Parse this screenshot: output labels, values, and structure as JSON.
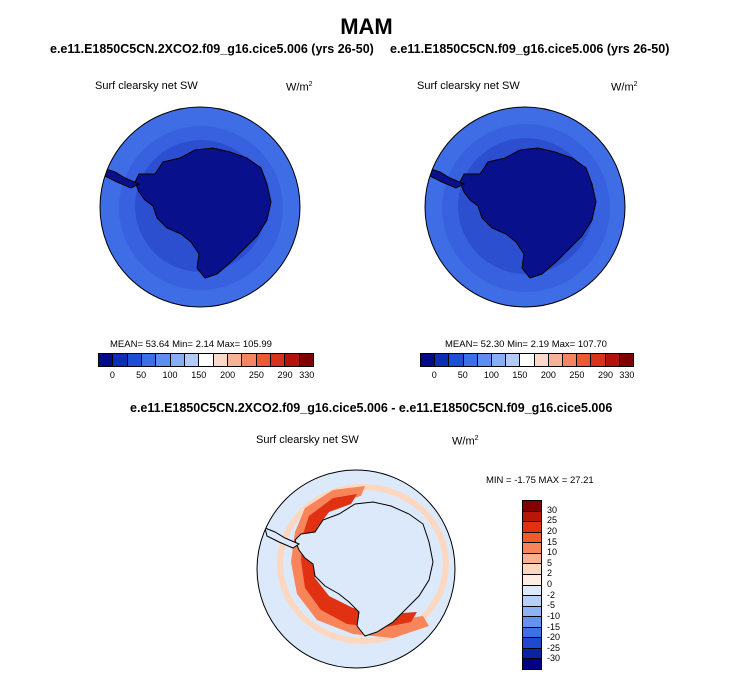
{
  "title": "MAM",
  "panels": [
    {
      "case": "e.e11.E1850C5CN.2XCO2.f09_g16.cice5.006 (yrs 26-50)",
      "variable": "Surf clearsky net SW",
      "units_base": "W/m",
      "units_exp": "2",
      "mean_label": "MEAN=",
      "mean": "53.64",
      "min_label": "Min=",
      "min": "2.14",
      "max_label": "Max=",
      "max": "105.99"
    },
    {
      "case": "e.e11.E1850C5CN.f09_g16.cice5.006 (yrs 26-50)",
      "variable": "Surf clearsky net SW",
      "units_base": "W/m",
      "units_exp": "2",
      "mean_label": "MEAN=",
      "mean": "52.30",
      "min_label": "Min=",
      "min": "2.19",
      "max_label": "Max=",
      "max": "107.70"
    }
  ],
  "diff": {
    "title": "e.e11.E1850C5CN.2XCO2.f09_g16.cice5.006 - e.e11.E1850C5CN.f09_g16.cice5.006",
    "variable": "Surf clearsky net SW",
    "units_base": "W/m",
    "units_exp": "2",
    "range_text": "MIN = -1.75 MAX = 27.21"
  },
  "abs_colorbar": {
    "colors": [
      "#000c8a",
      "#0a2fb5",
      "#1c4fd6",
      "#3a6fe8",
      "#5d8ef0",
      "#86adf5",
      "#b3cbf9",
      "#ffffff",
      "#fad9c8",
      "#f7b297",
      "#f48462",
      "#ea5a35",
      "#d9321b",
      "#b3130c",
      "#7e0000"
    ],
    "ticks": [
      "0",
      "50",
      "100",
      "150",
      "200",
      "250",
      "290",
      "330"
    ]
  },
  "diff_colorbar": {
    "colors": [
      "#840000",
      "#b81608",
      "#e03213",
      "#f25a2c",
      "#f8845a",
      "#fbb08e",
      "#fdd7c0",
      "#fdeee3",
      "#dbe9fb",
      "#b6d0f9",
      "#8eb3f4",
      "#6592ee",
      "#3f6fe6",
      "#2049cf",
      "#0b24a6",
      "#000080"
    ],
    "ticks": [
      "30",
      "25",
      "20",
      "15",
      "10",
      "5",
      "2",
      "0",
      "-2",
      "-5",
      "-10",
      "-15",
      "-20",
      "-25",
      "-30"
    ]
  },
  "colors": {
    "ocean_outer": "#3f6de6",
    "ocean_mid": "#3861e0",
    "ocean_inner": "#2c4fcf",
    "land_ice": "#08108c",
    "diff_bg": "#dbe9fb",
    "diff_light": "#fdd7c0",
    "diff_mid": "#f8845a",
    "diff_strong": "#e03213"
  }
}
